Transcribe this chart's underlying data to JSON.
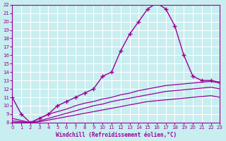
{
  "xlabel": "Windchill (Refroidissement éolien,°C)",
  "bg_color": "#c8eef0",
  "grid_color": "#ffffff",
  "line_color": "#990099",
  "xmin": 0,
  "xmax": 23,
  "ymin": 8,
  "ymax": 22,
  "xticks": [
    0,
    1,
    2,
    3,
    4,
    5,
    6,
    7,
    8,
    9,
    10,
    11,
    12,
    13,
    14,
    15,
    16,
    17,
    18,
    19,
    20,
    21,
    22,
    23
  ],
  "yticks": [
    8,
    9,
    10,
    11,
    12,
    13,
    14,
    15,
    16,
    17,
    18,
    19,
    20,
    21,
    22
  ],
  "curve1_x": [
    0,
    1,
    2,
    3,
    4,
    5,
    6,
    7,
    8,
    9,
    10,
    11,
    12,
    13,
    14,
    15,
    16,
    17,
    18,
    19,
    20,
    21,
    22,
    23
  ],
  "curve1_y": [
    11.0,
    9.0,
    8.0,
    8.5,
    9.0,
    10.0,
    10.5,
    11.0,
    11.5,
    12.0,
    13.5,
    14.0,
    16.5,
    18.5,
    20.0,
    21.5,
    22.2,
    21.5,
    19.5,
    16.0,
    13.5,
    13.0,
    13.0,
    12.8
  ],
  "curve2_x": [
    0,
    2,
    3,
    4,
    5,
    6,
    7,
    8,
    9,
    10,
    11,
    12,
    13,
    14,
    15,
    16,
    17,
    18,
    19,
    20,
    21,
    22,
    23
  ],
  "curve2_y": [
    8.5,
    8.0,
    8.5,
    9.0,
    9.3,
    9.6,
    10.0,
    10.3,
    10.5,
    10.8,
    11.0,
    11.3,
    11.5,
    11.8,
    12.0,
    12.2,
    12.4,
    12.5,
    12.6,
    12.7,
    12.8,
    12.9,
    12.7
  ],
  "curve3_x": [
    0,
    2,
    3,
    4,
    5,
    6,
    7,
    8,
    9,
    10,
    11,
    12,
    13,
    14,
    15,
    16,
    17,
    18,
    19,
    20,
    21,
    22,
    23
  ],
  "curve3_y": [
    8.2,
    8.0,
    8.2,
    8.5,
    8.8,
    9.1,
    9.4,
    9.7,
    10.0,
    10.2,
    10.5,
    10.7,
    10.9,
    11.1,
    11.3,
    11.5,
    11.7,
    11.8,
    11.9,
    12.0,
    12.1,
    12.2,
    12.0
  ],
  "curve4_x": [
    0,
    2,
    3,
    4,
    5,
    6,
    7,
    8,
    9,
    10,
    11,
    12,
    13,
    14,
    15,
    16,
    17,
    18,
    19,
    20,
    21,
    22,
    23
  ],
  "curve4_y": [
    8.0,
    8.0,
    8.1,
    8.3,
    8.5,
    8.7,
    8.9,
    9.1,
    9.3,
    9.5,
    9.7,
    9.9,
    10.1,
    10.3,
    10.5,
    10.6,
    10.7,
    10.8,
    10.9,
    11.0,
    11.1,
    11.2,
    11.0
  ]
}
